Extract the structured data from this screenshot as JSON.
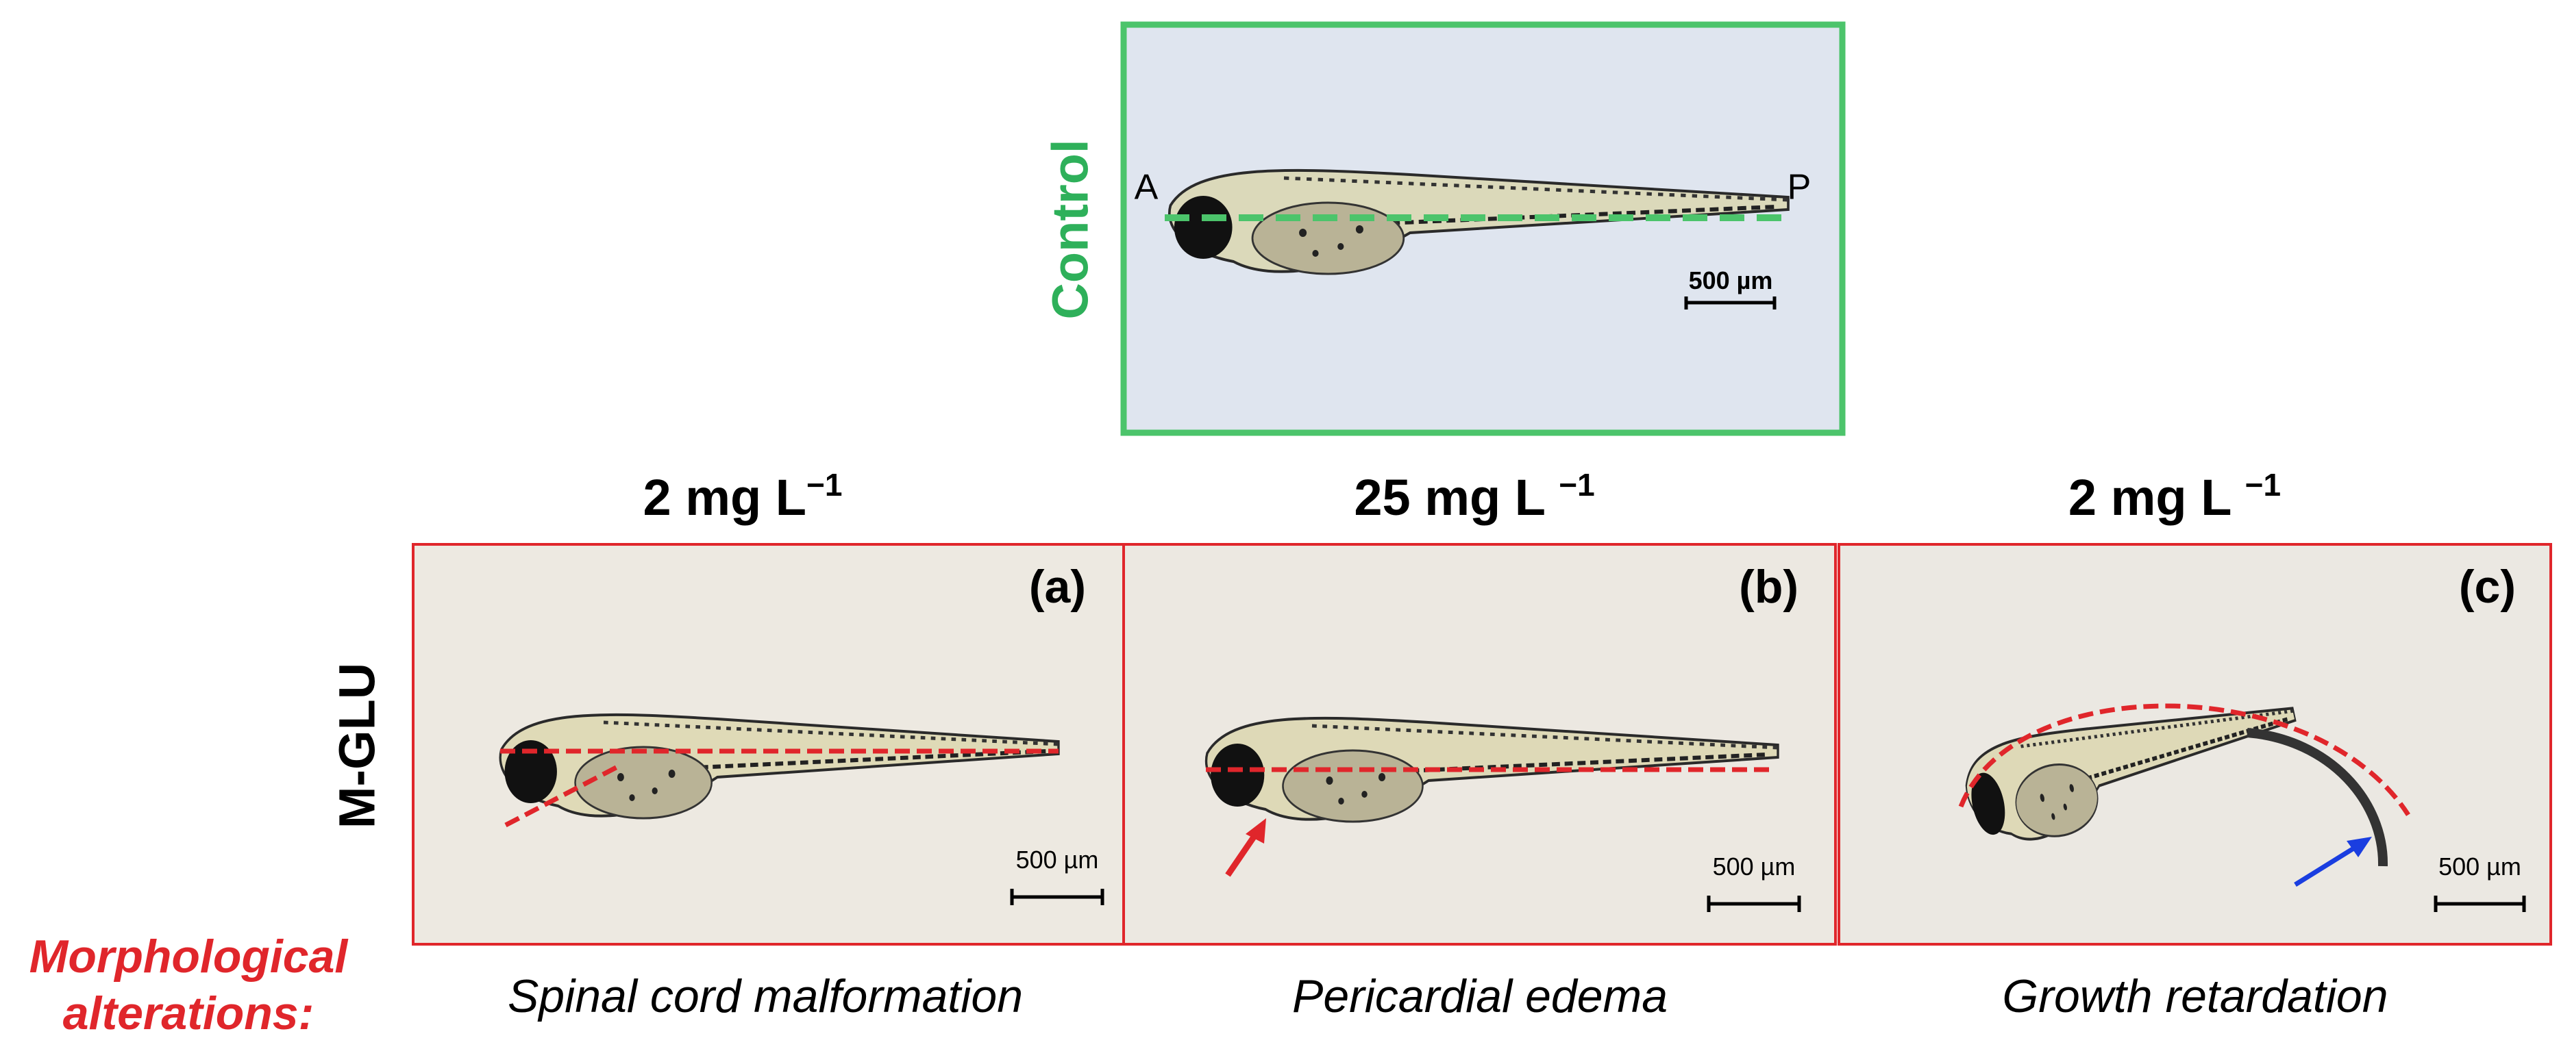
{
  "control": {
    "label": "Control",
    "anterior": "A",
    "posterior": "P",
    "scale_bar": "500 µm"
  },
  "treatment": "M-GLU",
  "row_label": [
    "Morphological",
    "alterations:"
  ],
  "panels": [
    {
      "concentration": {
        "text": "2 mg L",
        "sup": "−1"
      },
      "label": "(a)",
      "scale_bar": "500 µm",
      "alteration": "Spinal cord malformation"
    },
    {
      "concentration": {
        "text": "25 mg L ",
        "sup": "−1"
      },
      "label": "(b)",
      "scale_bar": "500 µm",
      "alteration": "Pericardial edema"
    },
    {
      "concentration": {
        "text": "2 mg L ",
        "sup": "−1"
      },
      "label": "(c)",
      "scale_bar": "500 µm",
      "alteration": "Growth retardation"
    }
  ]
}
